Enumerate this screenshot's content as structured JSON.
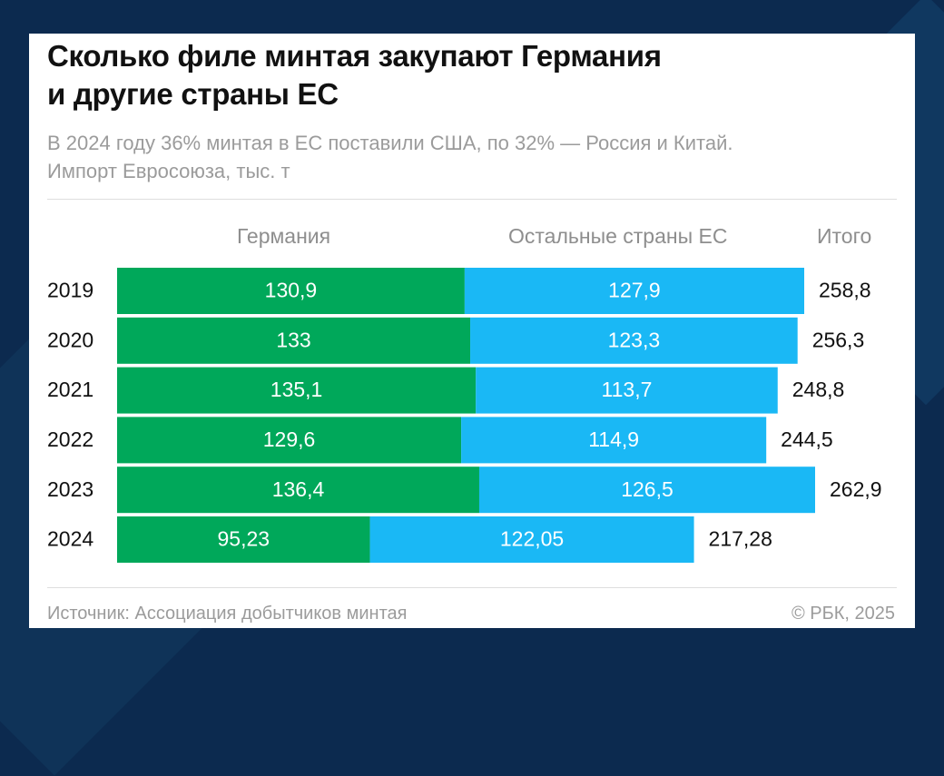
{
  "title_line1": "Сколько филе минтая закупают Германия",
  "title_line2": "и другие страны ЕС",
  "subtitle_line1": "В 2024 году 36% минтая в ЕС поставили США, по 32% — Россия и Китай.",
  "subtitle_line2": "Импорт Евросоюза, тыс. т",
  "headers": {
    "germany": "Германия",
    "rest": "Остальные страны ЕС",
    "total": "Итого"
  },
  "source": "Источник: Ассоциация добытчиков минтая",
  "copyright": "© РБК, 2025",
  "colors": {
    "germany": "#00a85a",
    "rest": "#1ab8f5",
    "background": "#0c2a4f"
  },
  "chart_data": {
    "type": "bar",
    "orientation": "horizontal",
    "stacked": true,
    "categories": [
      "2019",
      "2020",
      "2021",
      "2022",
      "2023",
      "2024"
    ],
    "series": [
      {
        "name": "Германия",
        "values": [
          130.9,
          133,
          135.1,
          129.6,
          136.4,
          95.23
        ],
        "labels": [
          "130,9",
          "133",
          "135,1",
          "129,6",
          "136,4",
          "95,23"
        ]
      },
      {
        "name": "Остальные страны ЕС",
        "values": [
          127.9,
          123.3,
          113.7,
          114.9,
          126.5,
          122.05
        ],
        "labels": [
          "127,9",
          "123,3",
          "113,7",
          "114,9",
          "126,5",
          "122,05"
        ]
      }
    ],
    "totals": [
      258.8,
      256.3,
      248.8,
      244.5,
      262.9,
      217.28
    ],
    "total_labels": [
      "258,8",
      "256,3",
      "248,8",
      "244,5",
      "262,9",
      "217,28"
    ],
    "xlim": [
      0,
      262.9
    ],
    "grid": false,
    "legend": "column headers above bars"
  }
}
